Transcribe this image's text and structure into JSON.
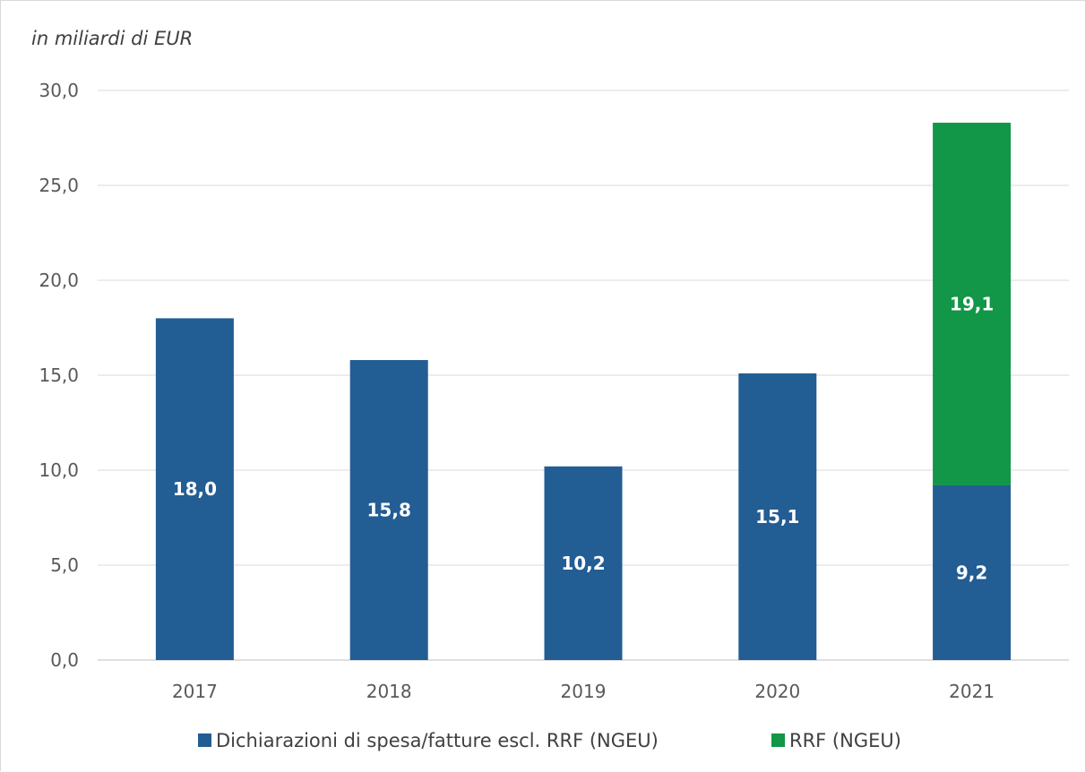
{
  "chart_data": {
    "type": "bar",
    "stacked": true,
    "unit_note": "in miliardi di EUR",
    "categories": [
      "2017",
      "2018",
      "2019",
      "2020",
      "2021"
    ],
    "series": [
      {
        "name": "Dichiarazioni di spesa/fatture escl. RRF (NGEU)",
        "color": "#225D94",
        "values": [
          18.0,
          15.8,
          10.2,
          15.1,
          9.2
        ],
        "labels": [
          "18,0",
          "15,8",
          "10,2",
          "15,1",
          "9,2"
        ]
      },
      {
        "name": "RRF (NGEU)",
        "color": "#129647",
        "values": [
          0,
          0,
          0,
          0,
          19.1
        ],
        "labels": [
          "",
          "",
          "",
          "",
          "19,1"
        ]
      }
    ],
    "ylim": [
      0,
      30
    ],
    "yticks": [
      "0,0",
      "5,0",
      "10,0",
      "15,0",
      "20,0",
      "25,0",
      "30,0"
    ],
    "grid": true,
    "legend_position": "bottom"
  }
}
